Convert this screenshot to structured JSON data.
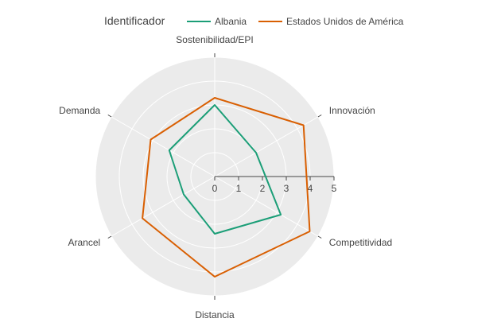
{
  "chart_data": {
    "type": "radar",
    "legend": {
      "title": "Identificador",
      "placement": "top"
    },
    "axes": [
      "Sostenibilidad/EPI",
      "Innovación",
      "Competitividad",
      "Distancia",
      "Arancel",
      "Demanda"
    ],
    "radial_range": [
      0,
      5
    ],
    "radial_ticks": [
      "0",
      "1",
      "2",
      "3",
      "4",
      "5"
    ],
    "series": [
      {
        "name": "Albania",
        "color": "#1b9e77",
        "values": [
          3.0,
          2.0,
          3.2,
          2.4,
          1.5,
          2.2
        ]
      },
      {
        "name": "Estados Unidos de América",
        "color": "#d95f02",
        "values": [
          3.3,
          4.3,
          4.6,
          4.2,
          3.5,
          3.1
        ]
      }
    ]
  }
}
